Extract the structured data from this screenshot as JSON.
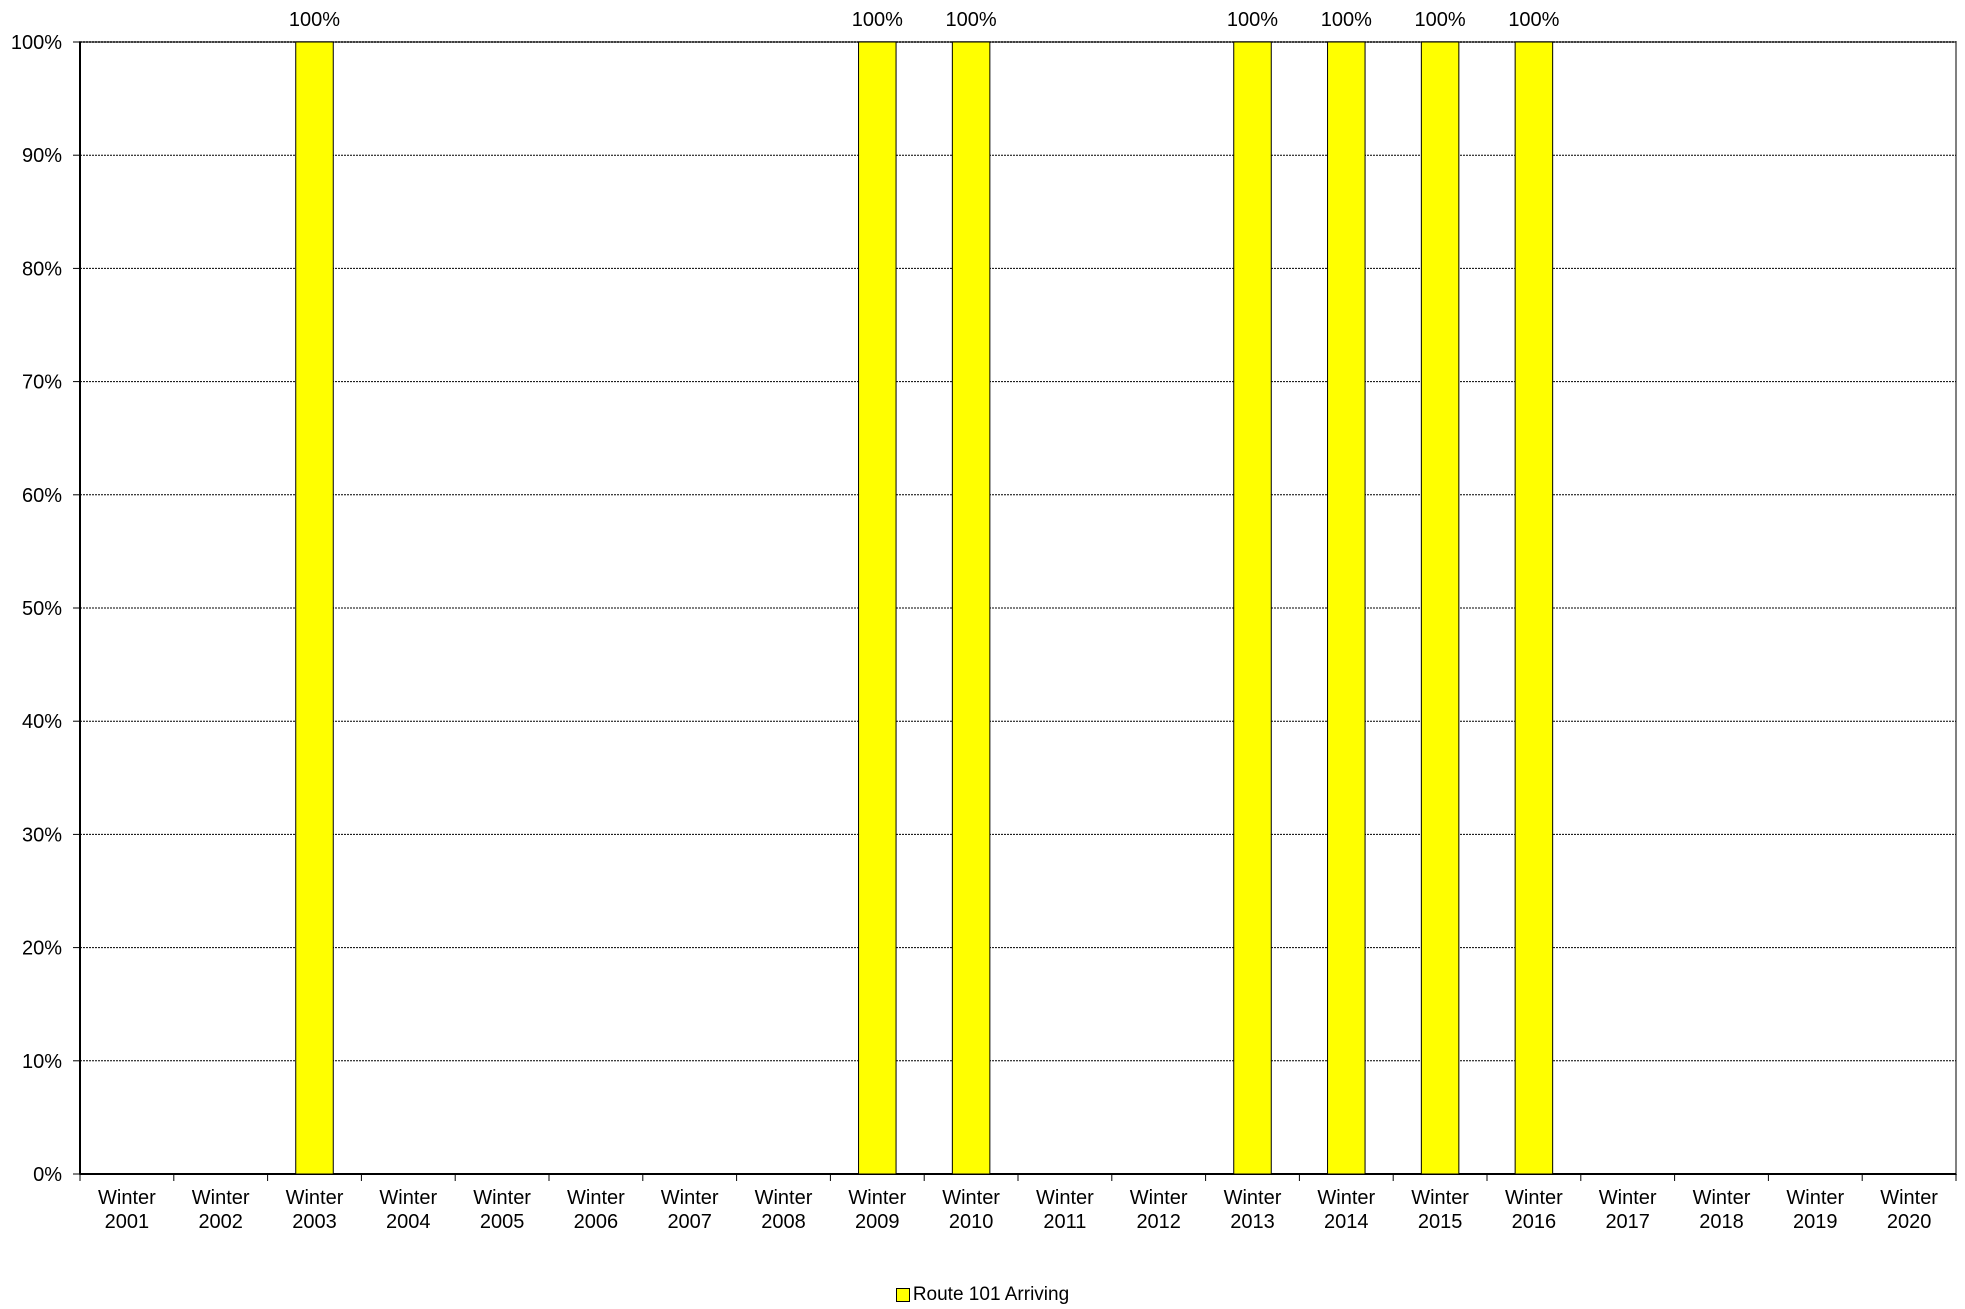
{
  "chart_data": {
    "type": "bar",
    "categories": [
      [
        "Winter",
        "2001"
      ],
      [
        "Winter",
        "2002"
      ],
      [
        "Winter",
        "2003"
      ],
      [
        "Winter",
        "2004"
      ],
      [
        "Winter",
        "2005"
      ],
      [
        "Winter",
        "2006"
      ],
      [
        "Winter",
        "2007"
      ],
      [
        "Winter",
        "2008"
      ],
      [
        "Winter",
        "2009"
      ],
      [
        "Winter",
        "2010"
      ],
      [
        "Winter",
        "2011"
      ],
      [
        "Winter",
        "2012"
      ],
      [
        "Winter",
        "2013"
      ],
      [
        "Winter",
        "2014"
      ],
      [
        "Winter",
        "2015"
      ],
      [
        "Winter",
        "2016"
      ],
      [
        "Winter",
        "2017"
      ],
      [
        "Winter",
        "2018"
      ],
      [
        "Winter",
        "2019"
      ],
      [
        "Winter",
        "2020"
      ]
    ],
    "series": [
      {
        "name": "Route 101 Arriving",
        "color": "#ffff00",
        "values": [
          null,
          null,
          100,
          null,
          null,
          null,
          null,
          null,
          100,
          100,
          null,
          null,
          100,
          100,
          100,
          100,
          null,
          null,
          null,
          null
        ],
        "data_labels": [
          "",
          "",
          "100%",
          "",
          "",
          "",
          "",
          "",
          "100%",
          "100%",
          "",
          "",
          "100%",
          "100%",
          "100%",
          "100%",
          "",
          "",
          "",
          ""
        ]
      }
    ],
    "ylim": [
      0,
      100
    ],
    "yticks": [
      "0%",
      "10%",
      "20%",
      "30%",
      "40%",
      "50%",
      "60%",
      "70%",
      "80%",
      "90%",
      "100%"
    ],
    "grid": true,
    "legend_position": "bottom",
    "title": "",
    "xlabel": "",
    "ylabel": ""
  }
}
